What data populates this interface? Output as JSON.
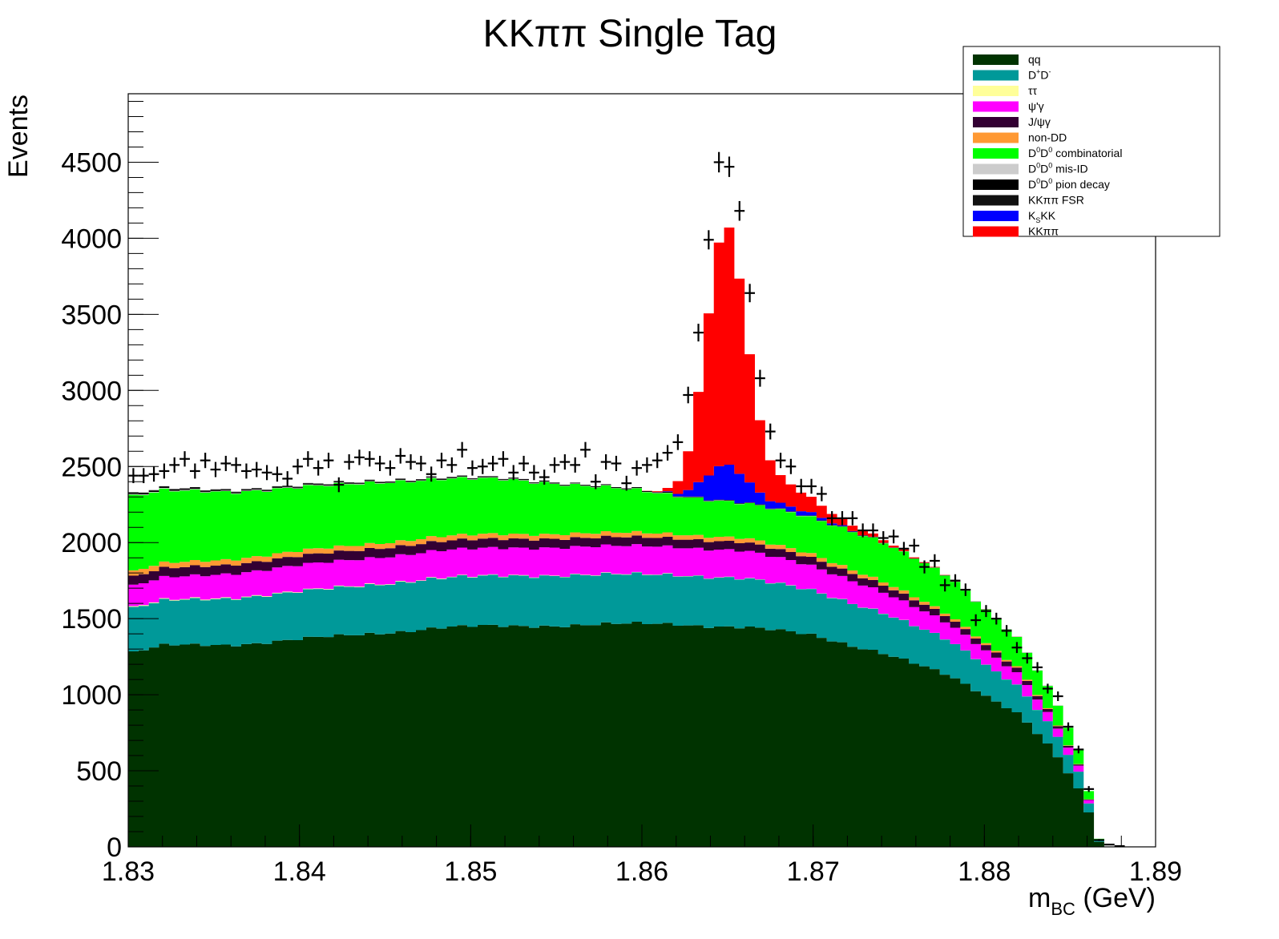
{
  "chart_data": {
    "type": "area",
    "title": "KKππ Single Tag",
    "xlabel": {
      "main": "m",
      "sub": "BC",
      "unit": " (GeV)"
    },
    "ylabel": "Events",
    "xlim": [
      1.83,
      1.89
    ],
    "ylim": [
      0,
      4950
    ],
    "x_ticks": [
      {
        "value": 1.83,
        "label": "1.83"
      },
      {
        "value": 1.84,
        "label": "1.84"
      },
      {
        "value": 1.85,
        "label": "1.85"
      },
      {
        "value": 1.86,
        "label": "1.86"
      },
      {
        "value": 1.87,
        "label": "1.87"
      },
      {
        "value": 1.88,
        "label": "1.88"
      },
      {
        "value": 1.89,
        "label": "1.89"
      }
    ],
    "y_ticks": [
      {
        "value": 0,
        "label": "0"
      },
      {
        "value": 500,
        "label": "500"
      },
      {
        "value": 1000,
        "label": "1000"
      },
      {
        "value": 1500,
        "label": "1500"
      },
      {
        "value": 2000,
        "label": "2000"
      },
      {
        "value": 2500,
        "label": "2500"
      },
      {
        "value": 3000,
        "label": "3000"
      },
      {
        "value": 3500,
        "label": "3500"
      },
      {
        "value": 4000,
        "label": "4000"
      },
      {
        "value": 4500,
        "label": "4500"
      }
    ],
    "legend_position": "top-right",
    "bin_width": 0.0006,
    "bin_count": 100,
    "series_shape": {
      "qq": {
        "color": "#003300",
        "values_at": [
          [
            1.83,
            1270
          ],
          [
            1.832,
            1320
          ],
          [
            1.836,
            1330
          ],
          [
            1.842,
            1380
          ],
          [
            1.848,
            1440
          ],
          [
            1.856,
            1460
          ],
          [
            1.862,
            1465
          ],
          [
            1.866,
            1445
          ],
          [
            1.87,
            1390
          ],
          [
            1.874,
            1280
          ],
          [
            1.878,
            1120
          ],
          [
            1.882,
            880
          ],
          [
            1.884,
            640
          ],
          [
            1.8855,
            380
          ],
          [
            1.8862,
            200
          ],
          [
            1.8868,
            0
          ]
        ]
      },
      "DpDm": {
        "color": "#009999",
        "values_at": [
          [
            1.83,
            290
          ],
          [
            1.836,
            305
          ],
          [
            1.844,
            320
          ],
          [
            1.852,
            330
          ],
          [
            1.86,
            325
          ],
          [
            1.866,
            320
          ],
          [
            1.872,
            280
          ],
          [
            1.878,
            230
          ],
          [
            1.882,
            180
          ],
          [
            1.8855,
            110
          ],
          [
            1.8868,
            0
          ]
        ]
      },
      "tautau": {
        "color": "#ffff99",
        "values_at": [
          [
            1.83,
            5
          ],
          [
            1.8868,
            0
          ]
        ]
      },
      "psipgamma": {
        "color": "#ff00ff",
        "values_at": [
          [
            1.83,
            140
          ],
          [
            1.84,
            170
          ],
          [
            1.85,
            180
          ],
          [
            1.86,
            185
          ],
          [
            1.866,
            180
          ],
          [
            1.872,
            150
          ],
          [
            1.878,
            110
          ],
          [
            1.882,
            80
          ],
          [
            1.8855,
            40
          ],
          [
            1.8868,
            0
          ]
        ]
      },
      "jpsigamma": {
        "color": "#330033",
        "values_at": [
          [
            1.83,
            60
          ],
          [
            1.85,
            60
          ],
          [
            1.866,
            55
          ],
          [
            1.876,
            45
          ],
          [
            1.882,
            30
          ],
          [
            1.8868,
            0
          ]
        ]
      },
      "nonDD": {
        "color": "#ff9933",
        "values_at": [
          [
            1.83,
            35
          ],
          [
            1.85,
            32
          ],
          [
            1.866,
            28
          ],
          [
            1.876,
            20
          ],
          [
            1.8868,
            0
          ]
        ]
      },
      "comb": {
        "color": "#00ff00",
        "values_at": [
          [
            1.83,
            500
          ],
          [
            1.836,
            440
          ],
          [
            1.844,
            400
          ],
          [
            1.852,
            360
          ],
          [
            1.858,
            300
          ],
          [
            1.862,
            250
          ],
          [
            1.866,
            230
          ],
          [
            1.87,
            240
          ],
          [
            1.874,
            260
          ],
          [
            1.878,
            250
          ],
          [
            1.882,
            190
          ],
          [
            1.8855,
            100
          ],
          [
            1.8868,
            0
          ]
        ]
      },
      "misid": {
        "color": "#cccccc",
        "values_at": [
          [
            1.83,
            4
          ],
          [
            1.8868,
            0
          ]
        ]
      },
      "piondecay": {
        "color": "#000000",
        "values_at": [
          [
            1.83,
            6
          ],
          [
            1.8868,
            0
          ]
        ]
      },
      "fsr": {
        "color": "#111111",
        "values_at": [
          [
            1.83,
            6
          ],
          [
            1.8868,
            0
          ]
        ]
      },
      "KsKK": {
        "color": "#0000ff",
        "peak": {
          "mean": 1.8649,
          "sigma": 0.0012,
          "amp": 230
        },
        "tail": {
          "center": 1.8685,
          "sigma": 0.0018,
          "amp": 30
        }
      },
      "KKpipi": {
        "color": "#ff0000",
        "peak": {
          "mean": 1.8649,
          "sigma": 0.00115,
          "amp": 1500
        },
        "tail": {
          "center": 1.8675,
          "sigma": 0.0022,
          "amp": 140
        },
        "shoulder": {
          "center": 1.871,
          "sigma": 0.003,
          "amp": 25
        }
      }
    },
    "legend": [
      {
        "key": "qq",
        "label": "qq",
        "color": "#003300"
      },
      {
        "key": "DpDm",
        "label_main": "D",
        "sup1": "+",
        "label_mid": "D",
        "sup2": "-",
        "color": "#009999"
      },
      {
        "key": "tautau",
        "label": "ττ",
        "color": "#ffff99"
      },
      {
        "key": "psipgamma",
        "label": "ψ'γ",
        "color": "#ff00ff"
      },
      {
        "key": "jpsigamma",
        "label": "J/ψγ",
        "color": "#330033"
      },
      {
        "key": "nonDD",
        "label": "non-DD",
        "color": "#ff9933"
      },
      {
        "key": "comb",
        "label_main": "D",
        "sup1": "0",
        "label_mid": "D",
        "sup2": "0",
        "label_tail": " combinatorial",
        "color": "#00ff00"
      },
      {
        "key": "misid",
        "label_main": "D",
        "sup1": "0",
        "label_mid": "D",
        "sup2": "0",
        "label_tail": " mis-ID",
        "color": "#cccccc"
      },
      {
        "key": "piondecay",
        "label_main": "D",
        "sup1": "0",
        "label_mid": "D",
        "sup2": "0",
        "label_tail": " pion decay",
        "color": "#000000"
      },
      {
        "key": "fsr",
        "label": "KKππ FSR",
        "color": "#111111"
      },
      {
        "key": "KsKK",
        "label_main": "K",
        "sub1": "S",
        "label_tail": "KK",
        "color": "#0000ff"
      },
      {
        "key": "KKpipi",
        "label": "KKππ",
        "color": "#ff0000"
      }
    ],
    "data_points": [
      [
        1.8303,
        2440
      ],
      [
        1.8309,
        2440
      ],
      [
        1.8315,
        2450
      ],
      [
        1.8321,
        2470
      ],
      [
        1.8327,
        2510
      ],
      [
        1.8333,
        2550
      ],
      [
        1.8339,
        2470
      ],
      [
        1.8345,
        2540
      ],
      [
        1.8351,
        2480
      ],
      [
        1.8357,
        2520
      ],
      [
        1.8363,
        2510
      ],
      [
        1.8369,
        2470
      ],
      [
        1.8375,
        2480
      ],
      [
        1.8381,
        2460
      ],
      [
        1.8387,
        2450
      ],
      [
        1.8393,
        2420
      ],
      [
        1.8399,
        2500
      ],
      [
        1.8405,
        2550
      ],
      [
        1.8411,
        2490
      ],
      [
        1.8417,
        2540
      ],
      [
        1.8423,
        2380
      ],
      [
        1.8429,
        2530
      ],
      [
        1.8435,
        2560
      ],
      [
        1.8441,
        2550
      ],
      [
        1.8447,
        2520
      ],
      [
        1.8453,
        2490
      ],
      [
        1.8459,
        2570
      ],
      [
        1.8465,
        2530
      ],
      [
        1.8471,
        2520
      ],
      [
        1.8477,
        2450
      ],
      [
        1.8483,
        2540
      ],
      [
        1.8489,
        2510
      ],
      [
        1.8495,
        2610
      ],
      [
        1.8501,
        2490
      ],
      [
        1.8507,
        2500
      ],
      [
        1.8513,
        2520
      ],
      [
        1.8519,
        2550
      ],
      [
        1.8525,
        2460
      ],
      [
        1.8531,
        2520
      ],
      [
        1.8537,
        2460
      ],
      [
        1.8543,
        2430
      ],
      [
        1.8549,
        2510
      ],
      [
        1.8555,
        2530
      ],
      [
        1.8561,
        2510
      ],
      [
        1.8567,
        2610
      ],
      [
        1.8573,
        2400
      ],
      [
        1.8579,
        2530
      ],
      [
        1.8585,
        2520
      ],
      [
        1.8591,
        2390
      ],
      [
        1.8597,
        2490
      ],
      [
        1.8603,
        2510
      ],
      [
        1.8609,
        2540
      ],
      [
        1.8615,
        2590
      ],
      [
        1.8621,
        2660
      ],
      [
        1.8627,
        2970
      ],
      [
        1.8633,
        3380
      ],
      [
        1.8639,
        3990
      ],
      [
        1.8645,
        4500
      ],
      [
        1.8651,
        4470
      ],
      [
        1.8657,
        4180
      ],
      [
        1.8663,
        3640
      ],
      [
        1.8669,
        3080
      ],
      [
        1.8675,
        2730
      ],
      [
        1.8681,
        2540
      ],
      [
        1.8687,
        2500
      ],
      [
        1.8693,
        2370
      ],
      [
        1.8699,
        2370
      ],
      [
        1.8705,
        2320
      ],
      [
        1.8711,
        2160
      ],
      [
        1.8717,
        2160
      ],
      [
        1.8723,
        2160
      ],
      [
        1.8729,
        2080
      ],
      [
        1.8735,
        2080
      ],
      [
        1.8741,
        2030
      ],
      [
        1.8747,
        2040
      ],
      [
        1.8753,
        1960
      ],
      [
        1.8759,
        1980
      ],
      [
        1.8765,
        1840
      ],
      [
        1.8771,
        1880
      ],
      [
        1.8777,
        1720
      ],
      [
        1.8783,
        1750
      ],
      [
        1.8789,
        1690
      ],
      [
        1.8795,
        1490
      ],
      [
        1.8801,
        1550
      ],
      [
        1.8807,
        1500
      ],
      [
        1.8813,
        1420
      ],
      [
        1.8819,
        1310
      ],
      [
        1.8825,
        1240
      ],
      [
        1.8831,
        1180
      ],
      [
        1.8837,
        1040
      ],
      [
        1.8843,
        990
      ],
      [
        1.8849,
        790
      ],
      [
        1.8855,
        640
      ],
      [
        1.8861,
        380
      ],
      [
        1.8867,
        45
      ],
      [
        1.8873,
        15
      ],
      [
        1.8879,
        5
      ]
    ]
  }
}
